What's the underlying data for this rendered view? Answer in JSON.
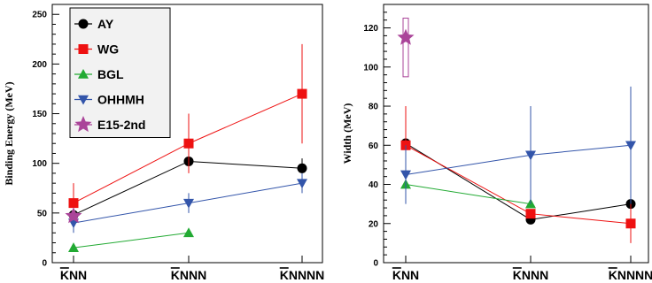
{
  "chart_data": [
    {
      "type": "line",
      "ylabel": "Binding Energy (MeV)",
      "categories": [
        "KNN",
        "KNNN",
        "KNNNN"
      ],
      "ylim": [
        0,
        260
      ],
      "yticks": [
        0,
        50,
        100,
        150,
        200,
        250
      ],
      "grid": false,
      "legend": "top-left",
      "series": [
        {
          "name": "AY",
          "color": "#000000",
          "marker": "circle",
          "points": [
            {
              "x": 0,
              "y": 48,
              "lo": 43,
              "hi": 53
            },
            {
              "x": 1,
              "y": 102,
              "lo": 92,
              "hi": 112
            },
            {
              "x": 2,
              "y": 95,
              "lo": 85,
              "hi": 105
            }
          ]
        },
        {
          "name": "WG",
          "color": "#ee1111",
          "marker": "square",
          "points": [
            {
              "x": 0,
              "y": 60,
              "lo": 50,
              "hi": 80
            },
            {
              "x": 1,
              "y": 120,
              "lo": 90,
              "hi": 150
            },
            {
              "x": 2,
              "y": 170,
              "lo": 120,
              "hi": 220
            }
          ]
        },
        {
          "name": "BGL",
          "color": "#22aa33",
          "marker": "triangle-up",
          "points": [
            {
              "x": 0,
              "y": 15
            },
            {
              "x": 1,
              "y": 30
            }
          ]
        },
        {
          "name": "OHHMH",
          "color": "#3355aa",
          "marker": "triangle-down",
          "points": [
            {
              "x": 0,
              "y": 40,
              "lo": 30,
              "hi": 50
            },
            {
              "x": 1,
              "y": 60,
              "lo": 50,
              "hi": 70
            },
            {
              "x": 2,
              "y": 80,
              "lo": 70,
              "hi": 90
            }
          ]
        },
        {
          "name": "E15-2nd",
          "color": "#aa4499",
          "marker": "star",
          "connect": false,
          "points": [
            {
              "x": 0,
              "y": 47
            }
          ]
        }
      ]
    },
    {
      "type": "line",
      "ylabel": "Width (MeV)",
      "categories": [
        "KNN",
        "KNNN",
        "KNNNN"
      ],
      "ylim": [
        0,
        132
      ],
      "yticks": [
        0,
        20,
        40,
        60,
        80,
        100,
        120
      ],
      "grid": false,
      "series": [
        {
          "name": "AY",
          "color": "#000000",
          "marker": "circle",
          "points": [
            {
              "x": 0,
              "y": 61
            },
            {
              "x": 1,
              "y": 22
            },
            {
              "x": 2,
              "y": 30,
              "lo": 26,
              "hi": 34
            }
          ]
        },
        {
          "name": "WG",
          "color": "#ee1111",
          "marker": "square",
          "points": [
            {
              "x": 0,
              "y": 60,
              "lo": 40,
              "hi": 80
            },
            {
              "x": 1,
              "y": 25
            },
            {
              "x": 2,
              "y": 20,
              "lo": 10,
              "hi": 30
            }
          ]
        },
        {
          "name": "BGL",
          "color": "#22aa33",
          "marker": "triangle-up",
          "points": [
            {
              "x": 0,
              "y": 40
            },
            {
              "x": 1,
              "y": 30
            }
          ]
        },
        {
          "name": "OHHMH",
          "color": "#3355aa",
          "marker": "triangle-down",
          "points": [
            {
              "x": 0,
              "y": 45,
              "lo": 30,
              "hi": 60
            },
            {
              "x": 1,
              "y": 55,
              "lo": 30,
              "hi": 80
            },
            {
              "x": 2,
              "y": 60,
              "lo": 30,
              "hi": 90
            }
          ]
        },
        {
          "name": "E15-2nd",
          "color": "#aa4499",
          "marker": "star",
          "connect": false,
          "points": [
            {
              "x": 0,
              "y": 115,
              "lo": 95,
              "hi": 125,
              "box": true
            }
          ]
        }
      ]
    }
  ]
}
